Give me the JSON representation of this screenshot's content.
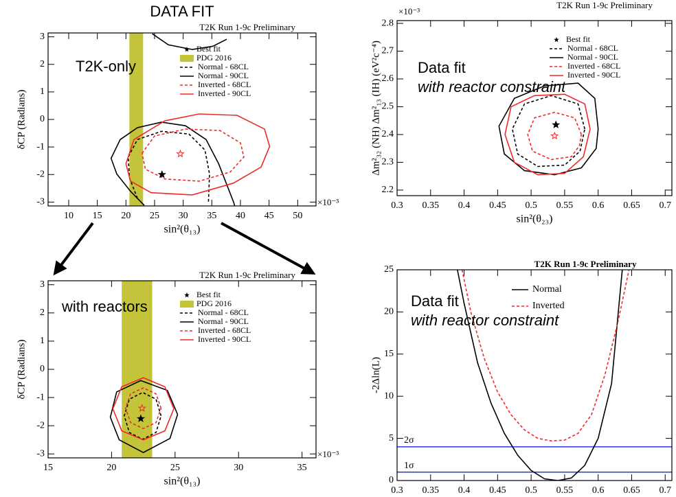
{
  "title": "DATA FIT",
  "chart_data": [
    {
      "type": "line",
      "title": "T2K Run 1-9c Preliminary",
      "xlabel": "sin²(θ₁₃)",
      "ylabel": "δCP (Radians)",
      "x_multiplier": "×10⁻³",
      "annotations": [
        "T2K-only"
      ],
      "xlim": [
        6.4,
        53.2
      ],
      "ylim": [
        -3.14,
        3.14
      ],
      "xticks": [
        10,
        15,
        20,
        25,
        30,
        35,
        40,
        45,
        50
      ],
      "yticks": [
        -3,
        -2,
        -1,
        0,
        1,
        2,
        3
      ],
      "best_fit": {
        "name": "Best fit",
        "points": [
          {
            "x": 26.3,
            "y": -2.0,
            "color": "#000000",
            "hollow": false
          },
          {
            "x": 29.5,
            "y": -1.25,
            "color": "#f02828",
            "hollow": true
          }
        ]
      },
      "band": {
        "name": "PDG 2016",
        "color": "#c3c43a",
        "xrange": [
          20.6,
          23.0
        ]
      },
      "series": [
        {
          "name": "Normal - 68CL",
          "color": "#000000",
          "dashed": true,
          "x": [
            22.0,
            20.6,
            20.4,
            22.0,
            26.2,
            31.0,
            33.8,
            34.6,
            34.4
          ],
          "values": [
            -2.86,
            -2.11,
            -1.36,
            -0.73,
            -0.43,
            -0.53,
            -1.11,
            -1.98,
            -3.06
          ]
        },
        {
          "name": "Normal - 90CL",
          "color": "#000000",
          "dashed": false,
          "x": [
            23.2,
            20.8,
            18.4,
            17.4,
            19.0,
            22.0,
            26.2,
            30.4,
            34.0,
            36.2,
            37.6,
            38.8,
            39.0,
            null,
            24.6,
            27.4,
            31.6,
            35.2,
            37.6
          ],
          "values": [
            -3.12,
            -2.61,
            -1.98,
            -1.41,
            -0.73,
            -0.3,
            -0.1,
            -0.23,
            -0.73,
            -1.61,
            -2.36,
            -3.0,
            -3.14,
            null,
            3.11,
            2.71,
            2.54,
            2.66,
            2.91
          ]
        },
        {
          "name": "Inverted - 68CL",
          "color": "#f02828",
          "dashed": true,
          "x": [
            22.8,
            25.0,
            30.4,
            36.4,
            40.0,
            40.6,
            38.2,
            32.8,
            26.8,
            23.4,
            22.8
          ],
          "values": [
            -1.23,
            -0.6,
            -0.35,
            -0.4,
            -0.85,
            -1.36,
            -1.91,
            -2.24,
            -2.16,
            -1.81,
            -1.23
          ]
        },
        {
          "name": "Inverted - 90CL",
          "color": "#f02828",
          "dashed": false,
          "x": [
            20.0,
            21.4,
            26.8,
            32.8,
            39.4,
            44.2,
            45.1,
            43.6,
            38.8,
            31.6,
            24.4,
            20.8,
            20.0
          ],
          "values": [
            -1.61,
            -0.73,
            -0.05,
            0.2,
            0.15,
            -0.35,
            -0.98,
            -1.73,
            -2.31,
            -2.74,
            -2.66,
            -2.24,
            -1.61
          ]
        }
      ]
    },
    {
      "type": "line",
      "title": "T2K Run 1-9c Preliminary",
      "xlabel": "sin²(θ₁₃)",
      "ylabel": "δCP (Radians)",
      "x_multiplier": "×10⁻³",
      "annotations": [
        "with reactors"
      ],
      "xlim": [
        15,
        36.1
      ],
      "ylim": [
        -3.14,
        3.14
      ],
      "xticks": [
        15,
        20,
        25,
        30,
        35
      ],
      "yticks": [
        -3,
        -2,
        -1,
        0,
        1,
        2,
        3
      ],
      "best_fit": {
        "name": "Best fit",
        "points": [
          {
            "x": 22.3,
            "y": -1.75,
            "color": "#000000",
            "hollow": false
          },
          {
            "x": 22.4,
            "y": -1.38,
            "color": "#f02828",
            "hollow": true
          }
        ]
      },
      "band": {
        "name": "PDG 2016",
        "color": "#c3c43a",
        "xrange": [
          20.8,
          23.2
        ]
      },
      "series": [
        {
          "name": "Normal - 68CL",
          "color": "#000000",
          "dashed": true,
          "x": [
            23.9,
            23.5,
            22.45,
            21.4,
            21.0,
            21.4,
            22.45,
            23.5,
            23.9
          ],
          "values": [
            -1.65,
            -1.06,
            -0.82,
            -1.06,
            -1.65,
            -2.24,
            -2.48,
            -2.24,
            -1.65
          ]
        },
        {
          "name": "Normal - 90CL",
          "color": "#000000",
          "dashed": false,
          "x": [
            25.2,
            24.4,
            22.3,
            20.4,
            19.9,
            20.6,
            22.5,
            24.6,
            25.2
          ],
          "values": [
            -1.6,
            -0.75,
            -0.4,
            -0.8,
            -1.7,
            -2.5,
            -2.95,
            -2.45,
            -1.6
          ]
        },
        {
          "name": "Inverted - 68CL",
          "color": "#f02828",
          "dashed": true,
          "x": [
            23.9,
            23.5,
            22.5,
            21.5,
            21.1,
            21.5,
            22.5,
            23.5,
            23.9
          ],
          "values": [
            -1.38,
            -0.87,
            -0.66,
            -0.87,
            -1.38,
            -1.89,
            -2.1,
            -1.89,
            -1.38
          ]
        },
        {
          "name": "Inverted - 90CL",
          "color": "#f02828",
          "dashed": false,
          "x": [
            24.9,
            24.2,
            22.5,
            20.8,
            20.1,
            20.8,
            22.5,
            24.2,
            24.9
          ],
          "values": [
            -1.4,
            -0.62,
            -0.3,
            -0.62,
            -1.4,
            -2.18,
            -2.5,
            -2.18,
            -1.4
          ]
        }
      ]
    },
    {
      "type": "line",
      "title": "T2K Run 1-9c Preliminary",
      "xlabel": "sin²(θ₂₃)",
      "ylabel": "Δm²₃₂ (NH) Δm²₁₃ (IH) (eV²c⁻⁴)",
      "x_multiplier": "×10⁻³",
      "annotations": [
        "Data fit",
        "with reactor constraint"
      ],
      "xlim": [
        0.3,
        0.71
      ],
      "ylim": [
        2.18,
        2.81
      ],
      "xticks": [
        0.3,
        0.35,
        0.4,
        0.45,
        0.5,
        0.55,
        0.6,
        0.65,
        0.7
      ],
      "yticks": [
        2.2,
        2.3,
        2.4,
        2.5,
        2.6,
        2.7,
        2.8
      ],
      "best_fit": {
        "name": "Best fit",
        "points": [
          {
            "x": 0.537,
            "y": 2.435,
            "color": "#000000",
            "hollow": false
          },
          {
            "x": 0.535,
            "y": 2.395,
            "color": "#f02828",
            "hollow": true
          }
        ]
      },
      "series": [
        {
          "name": "Normal - 68CL",
          "color": "#000000",
          "dashed": true,
          "x": [
            0.58,
            0.57,
            0.53,
            0.49,
            0.472,
            0.48,
            0.51,
            0.55,
            0.573,
            0.58
          ],
          "values": [
            2.42,
            2.51,
            2.54,
            2.51,
            2.42,
            2.33,
            2.285,
            2.29,
            2.34,
            2.42
          ]
        },
        {
          "name": "Normal - 90CL",
          "color": "#000000",
          "dashed": false,
          "x": [
            0.6,
            0.595,
            0.57,
            0.52,
            0.475,
            0.452,
            0.46,
            0.49,
            0.535,
            0.575,
            0.597,
            0.6
          ],
          "values": [
            2.42,
            2.53,
            2.585,
            2.575,
            2.53,
            2.43,
            2.33,
            2.27,
            2.255,
            2.28,
            2.35,
            2.42
          ]
        },
        {
          "name": "Inverted - 68CL",
          "color": "#f02828",
          "dashed": true,
          "x": [
            0.575,
            0.565,
            0.535,
            0.505,
            0.495,
            0.502,
            0.53,
            0.56,
            0.572,
            0.575
          ],
          "values": [
            2.4,
            2.46,
            2.48,
            2.46,
            2.4,
            2.34,
            2.31,
            2.32,
            2.36,
            2.4
          ]
        },
        {
          "name": "Inverted - 90CL",
          "color": "#f02828",
          "dashed": false,
          "x": [
            0.588,
            0.58,
            0.55,
            0.505,
            0.47,
            0.461,
            0.475,
            0.51,
            0.55,
            0.578,
            0.588
          ],
          "values": [
            2.42,
            2.51,
            2.545,
            2.54,
            2.5,
            2.4,
            2.3,
            2.255,
            2.26,
            2.32,
            2.42
          ]
        }
      ]
    },
    {
      "type": "line",
      "title": "T2K Run 1-9c Preliminary",
      "xlabel": "sin²(θ₂₃)",
      "ylabel": "-2Δln(L)",
      "annotations": [
        "Data fit",
        "with reactor constraint"
      ],
      "xlim": [
        0.3,
        0.71
      ],
      "ylim": [
        0,
        25
      ],
      "xticks": [
        0.3,
        0.35,
        0.4,
        0.45,
        0.5,
        0.55,
        0.6,
        0.65,
        0.7
      ],
      "yticks": [
        0,
        5,
        10,
        15,
        20,
        25
      ],
      "hlines": [
        {
          "value": 4,
          "label": "2σ",
          "color": "#2a35e0"
        },
        {
          "value": 1,
          "label": "1σ",
          "color": "#2a35e0"
        }
      ],
      "series": [
        {
          "name": "Normal",
          "color": "#000000",
          "dashed": false,
          "x": [
            0.39,
            0.4,
            0.42,
            0.44,
            0.46,
            0.48,
            0.5,
            0.52,
            0.54,
            0.56,
            0.58,
            0.6,
            0.62,
            0.636
          ],
          "values": [
            25,
            21,
            14,
            9.2,
            5.6,
            3.0,
            1.2,
            0.2,
            0,
            0.3,
            1.8,
            5.0,
            11.5,
            25
          ]
        },
        {
          "name": "Inverted",
          "color": "#f02828",
          "dashed": true,
          "x": [
            0.397,
            0.41,
            0.43,
            0.45,
            0.47,
            0.49,
            0.51,
            0.53,
            0.55,
            0.57,
            0.59,
            0.61,
            0.63,
            0.646
          ],
          "values": [
            25,
            20,
            14.5,
            10.5,
            7.8,
            6.0,
            5.0,
            4.7,
            4.8,
            5.6,
            7.8,
            12.5,
            19,
            25
          ]
        }
      ]
    }
  ]
}
